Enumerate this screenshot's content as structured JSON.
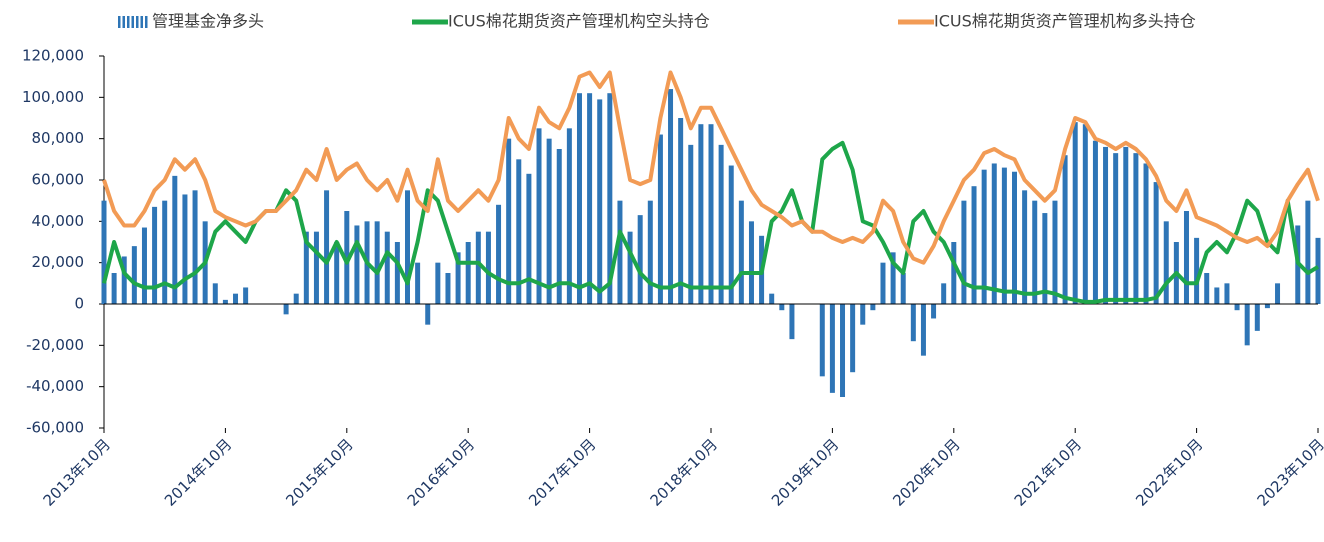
{
  "chart_data": {
    "type": "bar",
    "categories": [
      "2013年10月",
      null,
      null,
      null,
      null,
      null,
      null,
      null,
      null,
      null,
      null,
      null,
      "2014年10月",
      null,
      null,
      null,
      null,
      null,
      null,
      null,
      null,
      null,
      null,
      null,
      "2015年10月",
      null,
      null,
      null,
      null,
      null,
      null,
      null,
      null,
      null,
      null,
      null,
      "2016年10月",
      null,
      null,
      null,
      null,
      null,
      null,
      null,
      null,
      null,
      null,
      null,
      "2017年10月",
      null,
      null,
      null,
      null,
      null,
      null,
      null,
      null,
      null,
      null,
      null,
      "2018年10月",
      null,
      null,
      null,
      null,
      null,
      null,
      null,
      null,
      null,
      null,
      null,
      "2019年10月",
      null,
      null,
      null,
      null,
      null,
      null,
      null,
      null,
      null,
      null,
      null,
      "2020年10月",
      null,
      null,
      null,
      null,
      null,
      null,
      null,
      null,
      null,
      null,
      null,
      "2021年10月",
      null,
      null,
      null,
      null,
      null,
      null,
      null,
      null,
      null,
      null,
      null,
      "2022年10月",
      null,
      null,
      null,
      null,
      null,
      null,
      null,
      null,
      null,
      null,
      null,
      "2023年10月"
    ],
    "series": [
      {
        "name": "管理基金净多头",
        "type": "bar",
        "color": "#2e75b6",
        "values": [
          50000,
          15000,
          23000,
          28000,
          37000,
          47000,
          50000,
          62000,
          53000,
          55000,
          40000,
          10000,
          2000,
          5000,
          8000,
          0,
          0,
          0,
          -5000,
          5000,
          35000,
          35000,
          55000,
          30000,
          45000,
          38000,
          40000,
          40000,
          35000,
          30000,
          55000,
          20000,
          -10000,
          20000,
          15000,
          25000,
          30000,
          35000,
          35000,
          48000,
          80000,
          70000,
          63000,
          85000,
          80000,
          75000,
          85000,
          102000,
          102000,
          99000,
          102000,
          50000,
          35000,
          43000,
          50000,
          82000,
          104000,
          90000,
          77000,
          87000,
          87000,
          77000,
          67000,
          50000,
          40000,
          33000,
          5000,
          -3000,
          -17000,
          0,
          0,
          -35000,
          -43000,
          -45000,
          -33000,
          -10000,
          -3000,
          20000,
          25000,
          15000,
          -18000,
          -25000,
          -7000,
          10000,
          30000,
          50000,
          57000,
          65000,
          68000,
          66000,
          64000,
          55000,
          50000,
          44000,
          50000,
          72000,
          88000,
          87000,
          79000,
          76000,
          73000,
          76000,
          73000,
          68000,
          59000,
          40000,
          30000,
          45000,
          32000,
          15000,
          8000,
          10000,
          -3000,
          -20000,
          -13000,
          -2000,
          10000,
          0,
          38000,
          50000,
          32000
        ]
      },
      {
        "name": "ICUS棉花期货资产管理机构空头持仓",
        "type": "line",
        "color": "#1ea64a",
        "values": [
          10000,
          30000,
          15000,
          10000,
          8000,
          8000,
          10000,
          8000,
          12000,
          15000,
          20000,
          35000,
          40000,
          35000,
          30000,
          40000,
          45000,
          45000,
          55000,
          50000,
          30000,
          25000,
          20000,
          30000,
          20000,
          30000,
          20000,
          15000,
          25000,
          20000,
          10000,
          30000,
          55000,
          50000,
          35000,
          20000,
          20000,
          20000,
          15000,
          12000,
          10000,
          10000,
          12000,
          10000,
          8000,
          10000,
          10000,
          8000,
          10000,
          6000,
          10000,
          35000,
          25000,
          15000,
          10000,
          8000,
          8000,
          10000,
          8000,
          8000,
          8000,
          8000,
          8000,
          15000,
          15000,
          15000,
          40000,
          45000,
          55000,
          40000,
          35000,
          70000,
          75000,
          78000,
          65000,
          40000,
          38000,
          30000,
          20000,
          15000,
          40000,
          45000,
          35000,
          30000,
          20000,
          10000,
          8000,
          8000,
          7000,
          6000,
          6000,
          5000,
          5000,
          6000,
          5000,
          3000,
          2000,
          1000,
          1000,
          2000,
          2000,
          2000,
          2000,
          2000,
          3000,
          10000,
          15000,
          10000,
          10000,
          25000,
          30000,
          25000,
          35000,
          50000,
          45000,
          30000,
          25000,
          50000,
          20000,
          15000,
          18000
        ]
      },
      {
        "name": "ICUS棉花期货资产管理机构多头持仓",
        "type": "line",
        "color": "#f29b55",
        "values": [
          60000,
          45000,
          38000,
          38000,
          45000,
          55000,
          60000,
          70000,
          65000,
          70000,
          60000,
          45000,
          42000,
          40000,
          38000,
          40000,
          45000,
          45000,
          50000,
          55000,
          65000,
          60000,
          75000,
          60000,
          65000,
          68000,
          60000,
          55000,
          60000,
          50000,
          65000,
          50000,
          45000,
          70000,
          50000,
          45000,
          50000,
          55000,
          50000,
          60000,
          90000,
          80000,
          75000,
          95000,
          88000,
          85000,
          95000,
          110000,
          112000,
          105000,
          112000,
          85000,
          60000,
          58000,
          60000,
          90000,
          112000,
          100000,
          85000,
          95000,
          95000,
          85000,
          75000,
          65000,
          55000,
          48000,
          45000,
          42000,
          38000,
          40000,
          35000,
          35000,
          32000,
          30000,
          32000,
          30000,
          35000,
          50000,
          45000,
          30000,
          22000,
          20000,
          28000,
          40000,
          50000,
          60000,
          65000,
          73000,
          75000,
          72000,
          70000,
          60000,
          55000,
          50000,
          55000,
          75000,
          90000,
          88000,
          80000,
          78000,
          75000,
          78000,
          75000,
          70000,
          62000,
          50000,
          45000,
          55000,
          42000,
          40000,
          38000,
          35000,
          32000,
          30000,
          32000,
          28000,
          35000,
          50000,
          58000,
          65000,
          50000
        ]
      }
    ],
    "ylim": [
      -60000,
      120000
    ],
    "yticks": [
      {
        "value": -60000,
        "label": "-60,000"
      },
      {
        "value": -40000,
        "label": "-40,000"
      },
      {
        "value": -20000,
        "label": "-20,000"
      },
      0,
      {
        "value": 20000,
        "label": "20,000"
      },
      {
        "value": 40000,
        "label": "40,000"
      },
      {
        "value": 60000,
        "label": "60,000"
      },
      {
        "value": 80000,
        "label": "80,000"
      },
      {
        "value": 100000,
        "label": "100,000"
      },
      {
        "value": 120000,
        "label": "120,000"
      }
    ],
    "grid": false
  }
}
